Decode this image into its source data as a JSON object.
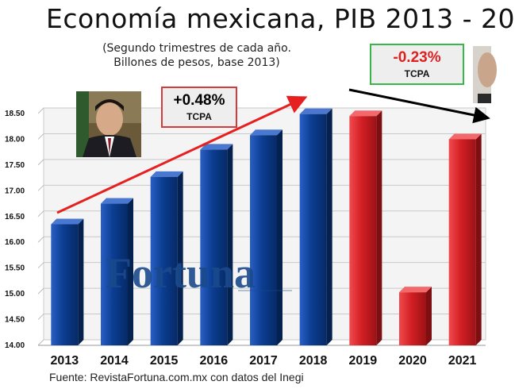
{
  "title": "Economía mexicana, PIB 2013 - 20",
  "subtitle_line1": "(Segundo trimestres de cada año.",
  "subtitle_line2": "Billones de pesos, base 2013)",
  "source": "Fuente: RevistaFortuna.com.mx con datos del Inegi",
  "watermark": "Fortuna",
  "tcpa_left": {
    "value": "+0.48%",
    "label": "TCPA"
  },
  "tcpa_right": {
    "value": "-0.23%",
    "label": "TCPA"
  },
  "colors": {
    "blue": "#0b3d91",
    "red": "#d21f24",
    "arrow_up": "#e62020",
    "arrow_down": "#000000"
  },
  "chart_data": {
    "type": "bar",
    "categories": [
      "2013",
      "2014",
      "2015",
      "2016",
      "2017",
      "2018",
      "2019",
      "2020",
      "2021"
    ],
    "values": [
      16.35,
      16.75,
      17.27,
      17.8,
      18.08,
      18.49,
      18.45,
      15.03,
      18.0
    ],
    "bar_colors": [
      "blue",
      "blue",
      "blue",
      "blue",
      "blue",
      "blue",
      "red",
      "red",
      "red"
    ],
    "yticks": [
      "14.00",
      "14.50",
      "15.00",
      "15.50",
      "16.00",
      "16.50",
      "17.00",
      "17.50",
      "18.00",
      "18.50"
    ],
    "ylim": [
      14.0,
      18.5
    ],
    "grid": true
  }
}
